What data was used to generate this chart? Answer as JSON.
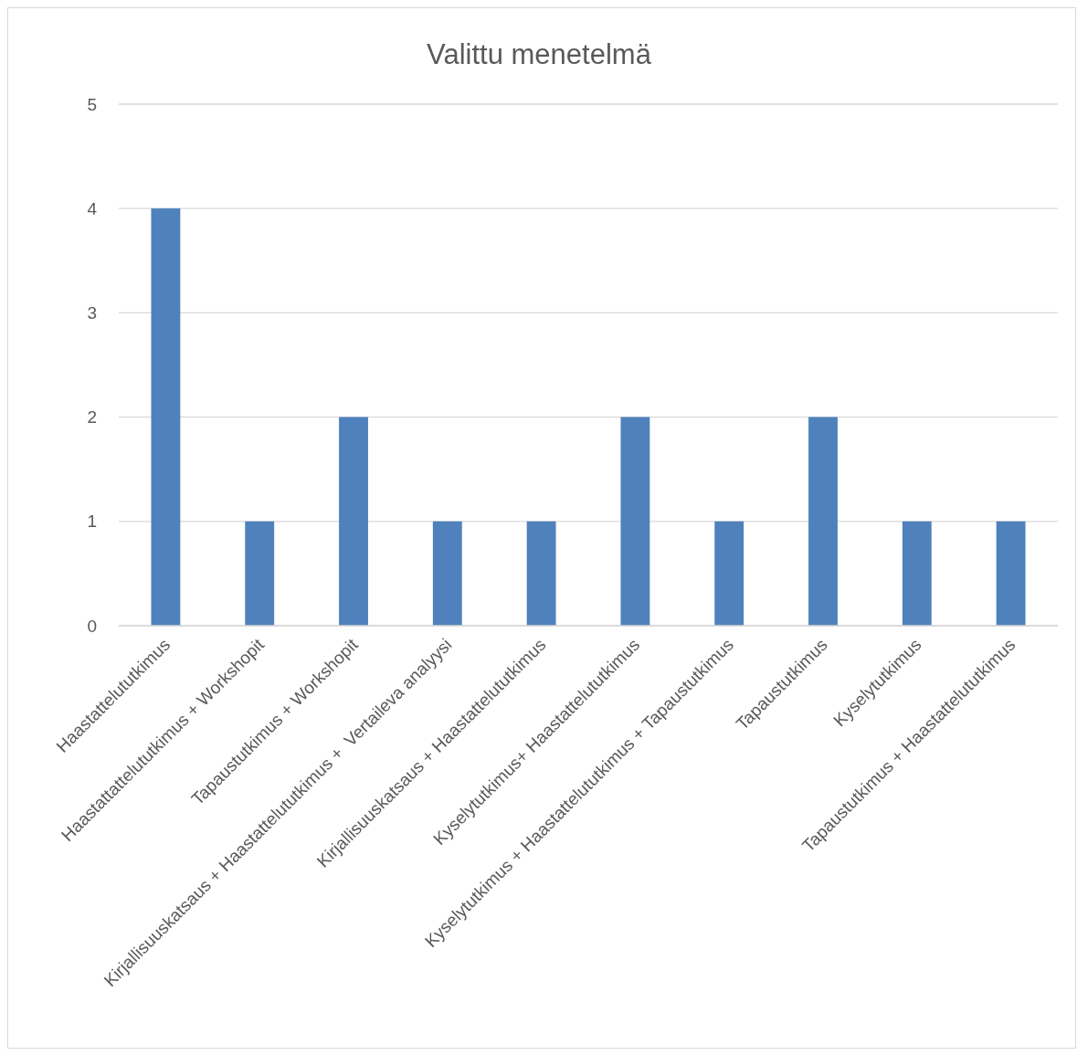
{
  "chart_data": {
    "type": "bar",
    "title": "Valittu menetelmä",
    "categories": [
      "Haastattelututkimus",
      "Haastattattelututkimus + Workshopit",
      "Tapaustutkimus + Workshopit",
      "Kirjallisuuskatsaus + Haastattelututkimus +  Vertaileva analyysi",
      "Kirjallisuuskatsaus + Haastattelututkimus",
      "Kyselytutkimus+ Haastattelututkimus",
      "Kyselytutkimus + Haastattelututkimus + Tapaustutkimus",
      "Tapaustutkimus",
      "Kyselytutkimus",
      "Tapaustutkimus + Haastattelututkimus"
    ],
    "values": [
      4,
      1,
      2,
      1,
      1,
      2,
      1,
      2,
      1,
      1
    ],
    "color": "#4f81bd",
    "ylim": [
      0,
      5
    ],
    "yticks": [
      0,
      1,
      2,
      3,
      4,
      5
    ],
    "grid": "y"
  }
}
